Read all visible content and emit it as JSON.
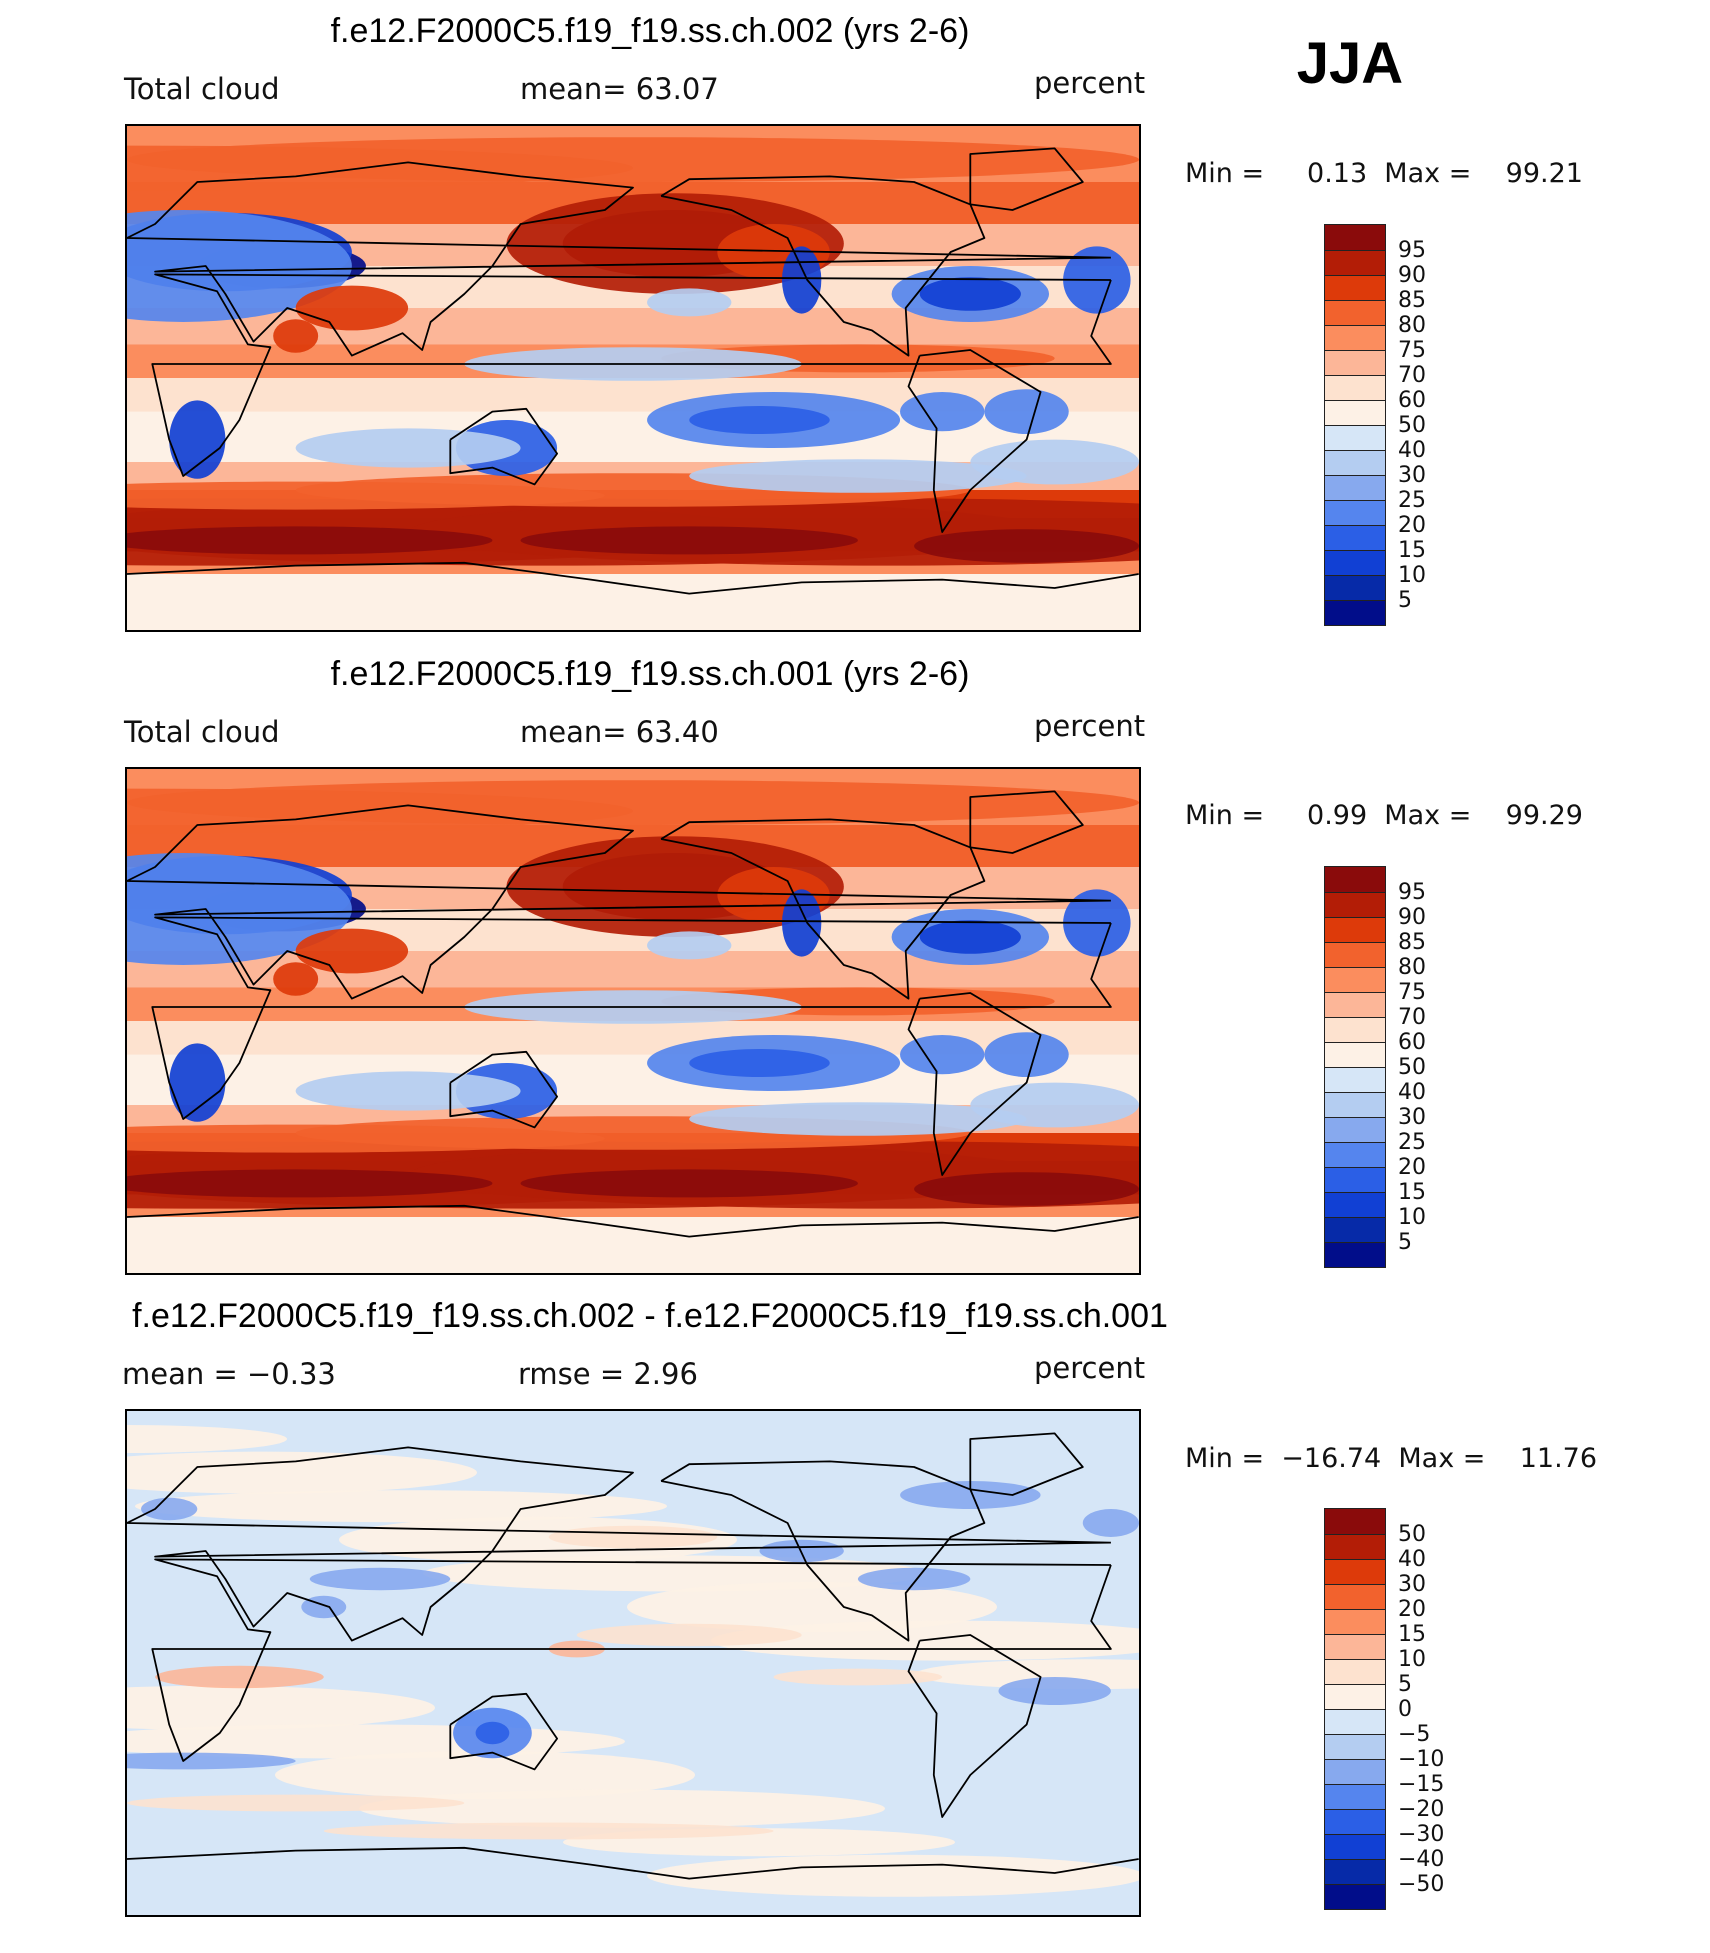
{
  "season": "JJA",
  "panels": [
    {
      "title": "f.e12.F2000C5.f19_f19.ss.ch.002 (yrs 2-6)",
      "variable": "Total cloud",
      "stat_text": "mean=   63.07",
      "units": "percent",
      "minmax": "Min =     0.13  Max =    99.21",
      "colorbar": {
        "colors": [
          "#8a0b0b",
          "#b31d06",
          "#dd3a0a",
          "#f2622d",
          "#fb8d5e",
          "#fcb698",
          "#fde2cf",
          "#fdf1e6",
          "#d6e6f7",
          "#b4cdf1",
          "#87a9ee",
          "#5585ee",
          "#2b5fe6",
          "#1140d4",
          "#062aa8",
          "#010d8a"
        ],
        "labels": [
          "95",
          "90",
          "85",
          "80",
          "75",
          "70",
          "60",
          "50",
          "40",
          "30",
          "25",
          "20",
          "15",
          "10",
          "5"
        ]
      },
      "field": "mean"
    },
    {
      "title": "f.e12.F2000C5.f19_f19.ss.ch.001 (yrs 2-6)",
      "variable": "Total cloud",
      "stat_text": "mean=   63.40",
      "units": "percent",
      "minmax": "Min =     0.99  Max =    99.29",
      "colorbar": {
        "colors": [
          "#8a0b0b",
          "#b31d06",
          "#dd3a0a",
          "#f2622d",
          "#fb8d5e",
          "#fcb698",
          "#fde2cf",
          "#fdf1e6",
          "#d6e6f7",
          "#b4cdf1",
          "#87a9ee",
          "#5585ee",
          "#2b5fe6",
          "#1140d4",
          "#062aa8",
          "#010d8a"
        ],
        "labels": [
          "95",
          "90",
          "85",
          "80",
          "75",
          "70",
          "60",
          "50",
          "40",
          "30",
          "25",
          "20",
          "15",
          "10",
          "5"
        ]
      },
      "field": "mean"
    },
    {
      "title": "f.e12.F2000C5.f19_f19.ss.ch.002 - f.e12.F2000C5.f19_f19.ss.ch.001",
      "variable": "mean =    −0.33",
      "stat_text": "rmse =     2.96",
      "units": "percent",
      "minmax": "Min =  −16.74  Max =    11.76",
      "colorbar": {
        "colors": [
          "#8a0b0b",
          "#b31d06",
          "#dd3a0a",
          "#f2622d",
          "#fb8d5e",
          "#fcb698",
          "#fde2cf",
          "#fdf1e6",
          "#d6e6f7",
          "#b4cdf1",
          "#87a9ee",
          "#5585ee",
          "#2b5fe6",
          "#1140d4",
          "#062aa8",
          "#010d8a"
        ],
        "labels": [
          "50",
          "40",
          "30",
          "20",
          "15",
          "10",
          "5",
          "0",
          "−5",
          "−10",
          "−15",
          "−20",
          "−30",
          "−40",
          "−50"
        ]
      },
      "field": "diff"
    }
  ]
}
